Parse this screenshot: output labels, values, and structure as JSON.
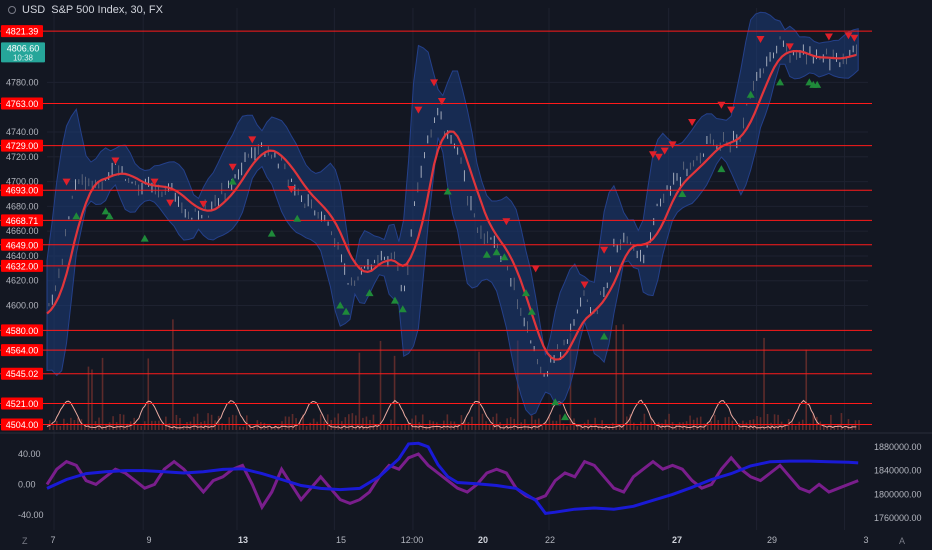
{
  "header": {
    "currency": "USD",
    "title": "S&P 500 Index, 30, FX"
  },
  "corners": {
    "left": "Z",
    "right": "A"
  },
  "colors": {
    "background": "#131722",
    "line": "#ff1a1a",
    "level_label_bg": "#ff0000",
    "last_price_bg": "#26a69a",
    "band_fill": "#1c3d7a",
    "ma": "#e0353b",
    "up_arrow": "#1f8a3a",
    "down_arrow": "#e0202a",
    "volume": "#5d2b2b",
    "volume_osc": "#e8a9a0",
    "osc_purple": "#7a1e8c",
    "osc_blue": "#1a1ad6"
  },
  "price_levels": [
    "4821.39",
    "4763.00",
    "4729.00",
    "4693.00",
    "4668.71",
    "4649.00",
    "4632.00",
    "4580.00",
    "4564.00",
    "4545.02",
    "4521.00",
    "4504.00"
  ],
  "last_price": {
    "price": "4806.60",
    "countdown": "10:38"
  },
  "chart_data": [
    {
      "type": "line",
      "name": "price",
      "x_ticks": [
        "7",
        "9",
        "13",
        "15",
        "12:00",
        "20",
        "22",
        "27",
        "29",
        "3"
      ],
      "y_ticks": [
        4780,
        4740,
        4720,
        4700,
        4680,
        4660,
        4640,
        4620,
        4600
      ],
      "ylim": [
        4498,
        4840
      ],
      "path": [
        [
          0.0,
          4592
        ],
        [
          0.8,
          4640
        ],
        [
          1.5,
          4700
        ],
        [
          2.5,
          4700
        ],
        [
          3.5,
          4712
        ],
        [
          4.5,
          4695
        ],
        [
          5.5,
          4698
        ],
        [
          6.5,
          4690
        ],
        [
          7.5,
          4672
        ],
        [
          8.5,
          4680
        ],
        [
          9.5,
          4700
        ],
        [
          10.5,
          4728
        ],
        [
          11.5,
          4725
        ],
        [
          12.5,
          4700
        ],
        [
          13.3,
          4683
        ],
        [
          14.0,
          4676
        ],
        [
          14.5,
          4665
        ],
        [
          15.0,
          4640
        ],
        [
          15.5,
          4615
        ],
        [
          16.0,
          4628
        ],
        [
          17.0,
          4640
        ],
        [
          17.8,
          4635
        ],
        [
          18.3,
          4612
        ],
        [
          18.8,
          4680
        ],
        [
          19.5,
          4735
        ],
        [
          20.0,
          4755
        ],
        [
          20.5,
          4738
        ],
        [
          21.0,
          4725
        ],
        [
          21.5,
          4688
        ],
        [
          22.0,
          4665
        ],
        [
          22.5,
          4655
        ],
        [
          23.0,
          4648
        ],
        [
          23.5,
          4635
        ],
        [
          24.0,
          4610
        ],
        [
          24.5,
          4580
        ],
        [
          25.0,
          4560
        ],
        [
          25.5,
          4545
        ],
        [
          26.0,
          4558
        ],
        [
          26.5,
          4572
        ],
        [
          27.0,
          4592
        ],
        [
          27.5,
          4605
        ],
        [
          28.0,
          4590
        ],
        [
          28.5,
          4615
        ],
        [
          29.0,
          4645
        ],
        [
          29.5,
          4655
        ],
        [
          30.0,
          4650
        ],
        [
          30.5,
          4640
        ],
        [
          31.0,
          4665
        ],
        [
          31.5,
          4690
        ],
        [
          32.0,
          4700
        ],
        [
          32.5,
          4705
        ],
        [
          33.0,
          4712
        ],
        [
          33.5,
          4722
        ],
        [
          34.0,
          4730
        ],
        [
          34.5,
          4735
        ],
        [
          35.0,
          4730
        ],
        [
          35.5,
          4740
        ],
        [
          36.0,
          4770
        ],
        [
          36.5,
          4790
        ],
        [
          37.0,
          4800
        ],
        [
          37.5,
          4812
        ],
        [
          38.0,
          4805
        ],
        [
          38.5,
          4800
        ],
        [
          39.0,
          4802
        ],
        [
          39.5,
          4798
        ],
        [
          40.0,
          4800
        ],
        [
          40.5,
          4799
        ],
        [
          41.0,
          4802
        ],
        [
          41.5,
          4806.6
        ]
      ]
    },
    {
      "type": "line",
      "name": "oscillator",
      "y_ticks_left": [
        "40.00",
        "0.00",
        "-40.00"
      ],
      "y_ticks_right": [
        "1880000.00",
        "1840000.00",
        "1800000.00",
        "1760000.00"
      ],
      "ylim": [
        -60,
        65
      ],
      "ylim_right": [
        1740000,
        1900000
      ],
      "series": [
        {
          "color": "purple",
          "values": [
            [
              0.0,
              0
            ],
            [
              0.5,
              20
            ],
            [
              1.0,
              30
            ],
            [
              1.5,
              25
            ],
            [
              2.0,
              5
            ],
            [
              2.5,
              0
            ],
            [
              3.0,
              10
            ],
            [
              3.5,
              20
            ],
            [
              4.0,
              15
            ],
            [
              4.5,
              5
            ],
            [
              5.0,
              -5
            ],
            [
              5.5,
              0
            ],
            [
              6.0,
              20
            ],
            [
              6.5,
              30
            ],
            [
              7.0,
              20
            ],
            [
              7.5,
              5
            ],
            [
              8.0,
              -10
            ],
            [
              8.5,
              5
            ],
            [
              9.0,
              10
            ],
            [
              9.5,
              20
            ],
            [
              10.0,
              25
            ],
            [
              10.5,
              0
            ],
            [
              11.0,
              -30
            ],
            [
              11.5,
              -10
            ],
            [
              12.0,
              20
            ],
            [
              12.5,
              0
            ],
            [
              13.0,
              -20
            ],
            [
              13.5,
              -5
            ],
            [
              14.0,
              10
            ],
            [
              14.5,
              -5
            ],
            [
              15.0,
              -20
            ],
            [
              15.5,
              -25
            ],
            [
              16.0,
              -20
            ],
            [
              16.5,
              -10
            ],
            [
              17.0,
              10
            ],
            [
              17.5,
              25
            ],
            [
              18.0,
              20
            ],
            [
              18.5,
              35
            ],
            [
              19.0,
              40
            ],
            [
              19.5,
              25
            ],
            [
              20.0,
              15
            ],
            [
              20.5,
              5
            ],
            [
              21.0,
              -5
            ],
            [
              21.5,
              -10
            ],
            [
              22.0,
              0
            ],
            [
              22.5,
              15
            ],
            [
              23.0,
              20
            ],
            [
              23.5,
              15
            ],
            [
              24.0,
              -5
            ],
            [
              24.5,
              -15
            ],
            [
              25.0,
              -20
            ],
            [
              25.5,
              -15
            ],
            [
              26.0,
              5
            ],
            [
              26.5,
              15
            ],
            [
              27.0,
              10
            ],
            [
              27.5,
              30
            ],
            [
              28.0,
              25
            ],
            [
              28.5,
              10
            ],
            [
              29.0,
              -5
            ],
            [
              29.5,
              -10
            ],
            [
              30.0,
              10
            ],
            [
              30.5,
              20
            ],
            [
              31.0,
              30
            ],
            [
              31.5,
              20
            ],
            [
              32.0,
              25
            ],
            [
              32.5,
              20
            ],
            [
              33.0,
              5
            ],
            [
              33.5,
              -5
            ],
            [
              34.0,
              0
            ],
            [
              34.5,
              20
            ],
            [
              35.0,
              35
            ],
            [
              35.5,
              20
            ],
            [
              36.0,
              10
            ],
            [
              36.5,
              5
            ],
            [
              37.0,
              15
            ],
            [
              37.5,
              25
            ],
            [
              38.0,
              10
            ],
            [
              38.5,
              -5
            ],
            [
              39.0,
              -10
            ],
            [
              39.5,
              0
            ],
            [
              40.0,
              -10
            ],
            [
              40.5,
              -5
            ],
            [
              41.0,
              0
            ],
            [
              41.5,
              5
            ]
          ]
        },
        {
          "color": "blue",
          "values": [
            [
              0.0,
              1810000
            ],
            [
              1.0,
              1825000
            ],
            [
              2.0,
              1835000
            ],
            [
              3.0,
              1838000
            ],
            [
              4.0,
              1840000
            ],
            [
              5.0,
              1840000
            ],
            [
              6.0,
              1838000
            ],
            [
              7.0,
              1836000
            ],
            [
              8.0,
              1838000
            ],
            [
              9.0,
              1842000
            ],
            [
              10.0,
              1843000
            ],
            [
              11.0,
              1835000
            ],
            [
              12.0,
              1825000
            ],
            [
              13.0,
              1815000
            ],
            [
              14.0,
              1810000
            ],
            [
              15.0,
              1808000
            ],
            [
              16.0,
              1810000
            ],
            [
              17.0,
              1830000
            ],
            [
              18.0,
              1860000
            ],
            [
              18.5,
              1885000
            ],
            [
              19.0,
              1886000
            ],
            [
              19.5,
              1880000
            ],
            [
              20.0,
              1850000
            ],
            [
              20.5,
              1830000
            ],
            [
              21.0,
              1820000
            ],
            [
              22.0,
              1818000
            ],
            [
              23.0,
              1815000
            ],
            [
              24.0,
              1810000
            ],
            [
              25.0,
              1790000
            ],
            [
              25.5,
              1768000
            ],
            [
              26.0,
              1770000
            ],
            [
              27.0,
              1775000
            ],
            [
              28.0,
              1777000
            ],
            [
              29.0,
              1775000
            ],
            [
              30.0,
              1780000
            ],
            [
              31.0,
              1790000
            ],
            [
              32.0,
              1800000
            ],
            [
              33.0,
              1812000
            ],
            [
              34.0,
              1825000
            ],
            [
              35.0,
              1835000
            ],
            [
              36.0,
              1848000
            ],
            [
              37.0,
              1855000
            ],
            [
              38.0,
              1856000
            ],
            [
              39.0,
              1856000
            ],
            [
              40.0,
              1855000
            ],
            [
              41.0,
              1854000
            ],
            [
              41.5,
              1853000
            ]
          ]
        }
      ]
    }
  ],
  "signals": {
    "up": [
      [
        1.5,
        4672
      ],
      [
        3.0,
        4676
      ],
      [
        3.2,
        4672
      ],
      [
        5.0,
        4654
      ],
      [
        9.5,
        4700
      ],
      [
        11.5,
        4658
      ],
      [
        12.8,
        4670
      ],
      [
        15.0,
        4600
      ],
      [
        15.3,
        4595
      ],
      [
        16.5,
        4610
      ],
      [
        17.8,
        4604
      ],
      [
        18.2,
        4597
      ],
      [
        20.5,
        4692
      ],
      [
        22.5,
        4641
      ],
      [
        23.0,
        4643
      ],
      [
        23.4,
        4639
      ],
      [
        24.5,
        4610
      ],
      [
        24.8,
        4595
      ],
      [
        26.0,
        4522
      ],
      [
        26.5,
        4510
      ],
      [
        28.5,
        4575
      ],
      [
        32.5,
        4690
      ],
      [
        34.5,
        4710
      ],
      [
        36.0,
        4770
      ],
      [
        37.5,
        4780
      ],
      [
        39.0,
        4780
      ],
      [
        39.2,
        4778
      ],
      [
        39.4,
        4778
      ]
    ],
    "down": [
      [
        1.0,
        4700
      ],
      [
        3.5,
        4717
      ],
      [
        5.5,
        4700
      ],
      [
        6.3,
        4683
      ],
      [
        8.0,
        4682
      ],
      [
        9.5,
        4712
      ],
      [
        10.5,
        4734
      ],
      [
        12.5,
        4694
      ],
      [
        19.0,
        4758
      ],
      [
        19.8,
        4780
      ],
      [
        20.2,
        4765
      ],
      [
        23.5,
        4668
      ],
      [
        25.0,
        4630
      ],
      [
        27.5,
        4617
      ],
      [
        28.5,
        4645
      ],
      [
        31.0,
        4722
      ],
      [
        31.3,
        4720
      ],
      [
        31.6,
        4725
      ],
      [
        32.0,
        4730
      ],
      [
        33.0,
        4748
      ],
      [
        34.5,
        4762
      ],
      [
        35.0,
        4758
      ],
      [
        36.5,
        4815
      ],
      [
        38.0,
        4809
      ],
      [
        40.0,
        4817
      ],
      [
        41.0,
        4818
      ],
      [
        41.3,
        4816
      ]
    ]
  }
}
